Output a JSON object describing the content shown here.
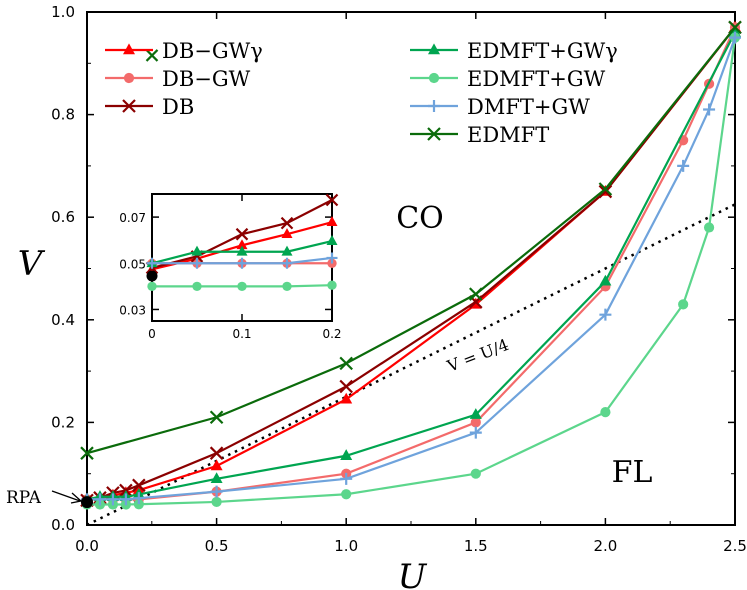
{
  "chart_data": {
    "type": "line",
    "xlabel": "U",
    "ylabel": "V",
    "xlim": [
      0,
      2.5
    ],
    "ylim": [
      0,
      1.0
    ],
    "xticks": [
      "0.0",
      "0.5",
      "1.0",
      "1.5",
      "2.0",
      "2.5"
    ],
    "yticks": [
      "0.0",
      "0.2",
      "0.4",
      "0.6",
      "0.8",
      "1.0"
    ],
    "legend_position": "top-left",
    "annotations": {
      "co": "CO",
      "fl": "FL",
      "guide": "V = U/4",
      "rpa": "RPA"
    },
    "guide_line": {
      "label": "V = U/4",
      "slope": 0.25
    },
    "rpa_point": {
      "x": 0,
      "y": 0.0445
    },
    "series": [
      {
        "name": "DB−GWγ",
        "color": "#ff0000",
        "marker": "triangle",
        "x": [
          0,
          0.05,
          0.1,
          0.15,
          0.2,
          0.5,
          1.0,
          1.5,
          2.0,
          2.5
        ],
        "y": [
          0.0474,
          0.052,
          0.0578,
          0.0626,
          0.0678,
          0.115,
          0.245,
          0.43,
          0.65,
          0.97
        ]
      },
      {
        "name": "DB−GW",
        "color": "#f36b6b",
        "marker": "circle",
        "x": [
          0,
          0.05,
          0.1,
          0.15,
          0.2,
          0.5,
          1.0,
          1.5,
          2.0,
          2.3,
          2.4,
          2.5
        ],
        "y": [
          0.05,
          0.05,
          0.05,
          0.05,
          0.05,
          0.065,
          0.1,
          0.2,
          0.465,
          0.75,
          0.86,
          0.97
        ]
      },
      {
        "name": "DB",
        "color": "#8b0000",
        "marker": "x",
        "x": [
          0,
          0.05,
          0.1,
          0.15,
          0.2,
          0.5,
          1.0,
          1.5,
          2.0,
          2.5
        ],
        "y": [
          0.048,
          0.053,
          0.0626,
          0.0674,
          0.0774,
          0.14,
          0.27,
          0.435,
          0.65,
          0.97
        ]
      },
      {
        "name": "EDMFT+GWγ",
        "color": "#00a550",
        "marker": "triangle",
        "x": [
          0,
          0.05,
          0.1,
          0.15,
          0.2,
          0.5,
          1.0,
          1.5,
          2.0,
          2.5
        ],
        "y": [
          0.05,
          0.055,
          0.055,
          0.055,
          0.0596,
          0.09,
          0.135,
          0.215,
          0.475,
          0.96
        ]
      },
      {
        "name": "EDMFT+GW",
        "color": "#5cd68c",
        "marker": "circle",
        "x": [
          0,
          0.05,
          0.1,
          0.15,
          0.2,
          0.5,
          1.0,
          1.5,
          2.0,
          2.3,
          2.4,
          2.5
        ],
        "y": [
          0.04,
          0.04,
          0.04,
          0.04,
          0.0405,
          0.045,
          0.06,
          0.1,
          0.22,
          0.43,
          0.58,
          0.95
        ]
      },
      {
        "name": "DMFT+GW",
        "color": "#6fa3dc",
        "marker": "plus",
        "x": [
          0,
          0.05,
          0.1,
          0.15,
          0.2,
          0.5,
          1.0,
          1.5,
          2.0,
          2.3,
          2.4,
          2.5
        ],
        "y": [
          0.05,
          0.05,
          0.05,
          0.05,
          0.0523,
          0.065,
          0.09,
          0.18,
          0.41,
          0.7,
          0.81,
          0.95
        ]
      },
      {
        "name": "EDMFT",
        "color": "#0b6b0b",
        "marker": "x",
        "x": [
          0,
          0.5,
          1.0,
          1.5,
          2.0,
          2.5
        ],
        "y": [
          0.14,
          0.21,
          0.315,
          0.45,
          0.655,
          0.97
        ]
      }
    ],
    "inset": {
      "xlim": [
        0,
        0.2
      ],
      "ylim": [
        0.025,
        0.08
      ],
      "xticks": [
        "0",
        "0.1",
        "0.2"
      ],
      "yticks": [
        "0.03",
        "0.05",
        "0.07"
      ]
    }
  }
}
